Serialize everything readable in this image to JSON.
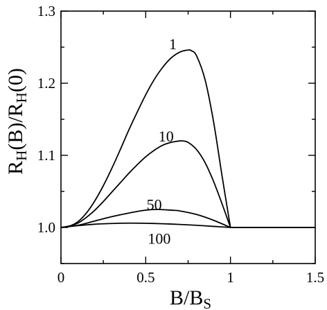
{
  "chart_data": {
    "type": "line",
    "xlabel": "B/B",
    "xlabel_sub": "S",
    "ylabel_parts": [
      "R",
      "H",
      "(B)/R",
      "H",
      "(0)"
    ],
    "xlim": [
      0,
      1.5
    ],
    "ylim": [
      0.95,
      1.3
    ],
    "xticks": [
      0,
      0.5,
      1,
      1.5
    ],
    "xtick_labels": [
      "0",
      "0.5",
      "1",
      "1.5"
    ],
    "yticks": [
      1.0,
      1.1,
      1.2,
      1.3
    ],
    "ytick_labels": [
      "1.0",
      "1.1",
      "1.2",
      "1.3"
    ],
    "grid": false,
    "line_color": "#000000",
    "series": [
      {
        "name": "1",
        "x": [
          0,
          0.05,
          0.1,
          0.15,
          0.2,
          0.25,
          0.3,
          0.35,
          0.4,
          0.45,
          0.5,
          0.55,
          0.6,
          0.65,
          0.7,
          0.75,
          0.77,
          0.8,
          0.85,
          0.9,
          0.95,
          1.0,
          1.5
        ],
        "y": [
          1.0,
          1.002,
          1.008,
          1.02,
          1.037,
          1.058,
          1.082,
          1.108,
          1.135,
          1.16,
          1.184,
          1.205,
          1.222,
          1.235,
          1.243,
          1.246,
          1.245,
          1.238,
          1.205,
          1.147,
          1.072,
          1.0,
          1.0
        ]
      },
      {
        "name": "10",
        "x": [
          0,
          0.05,
          0.1,
          0.15,
          0.2,
          0.25,
          0.3,
          0.35,
          0.4,
          0.45,
          0.5,
          0.55,
          0.6,
          0.65,
          0.7,
          0.72,
          0.75,
          0.8,
          0.85,
          0.9,
          0.95,
          1.0,
          1.5
        ],
        "y": [
          1.0,
          1.002,
          1.006,
          1.014,
          1.024,
          1.036,
          1.049,
          1.062,
          1.075,
          1.087,
          1.098,
          1.107,
          1.114,
          1.118,
          1.12,
          1.12,
          1.118,
          1.108,
          1.09,
          1.064,
          1.033,
          1.0,
          1.0
        ]
      },
      {
        "name": "50",
        "x": [
          0,
          0.1,
          0.2,
          0.3,
          0.4,
          0.5,
          0.57,
          0.65,
          0.7,
          0.8,
          0.9,
          1.0,
          1.5
        ],
        "y": [
          1.0,
          1.003,
          1.009,
          1.015,
          1.02,
          1.024,
          1.025,
          1.024,
          1.023,
          1.018,
          1.01,
          1.0,
          1.0
        ]
      },
      {
        "name": "100",
        "x": [
          0,
          0.1,
          0.2,
          0.3,
          0.4,
          0.5,
          0.6,
          0.7,
          0.8,
          0.9,
          1.0,
          1.5
        ],
        "y": [
          1.0,
          1.0025,
          1.0045,
          1.0055,
          1.006,
          1.0058,
          1.0052,
          1.0042,
          1.003,
          1.0015,
          1.0,
          1.0
        ]
      }
    ],
    "annotations": [
      {
        "text": "1",
        "x": 0.66,
        "y": 1.255
      },
      {
        "text": "10",
        "x": 0.62,
        "y": 1.127
      },
      {
        "text": "50",
        "x": 0.55,
        "y": 1.032
      },
      {
        "text": "100",
        "x": 0.58,
        "y": 0.985
      }
    ]
  }
}
